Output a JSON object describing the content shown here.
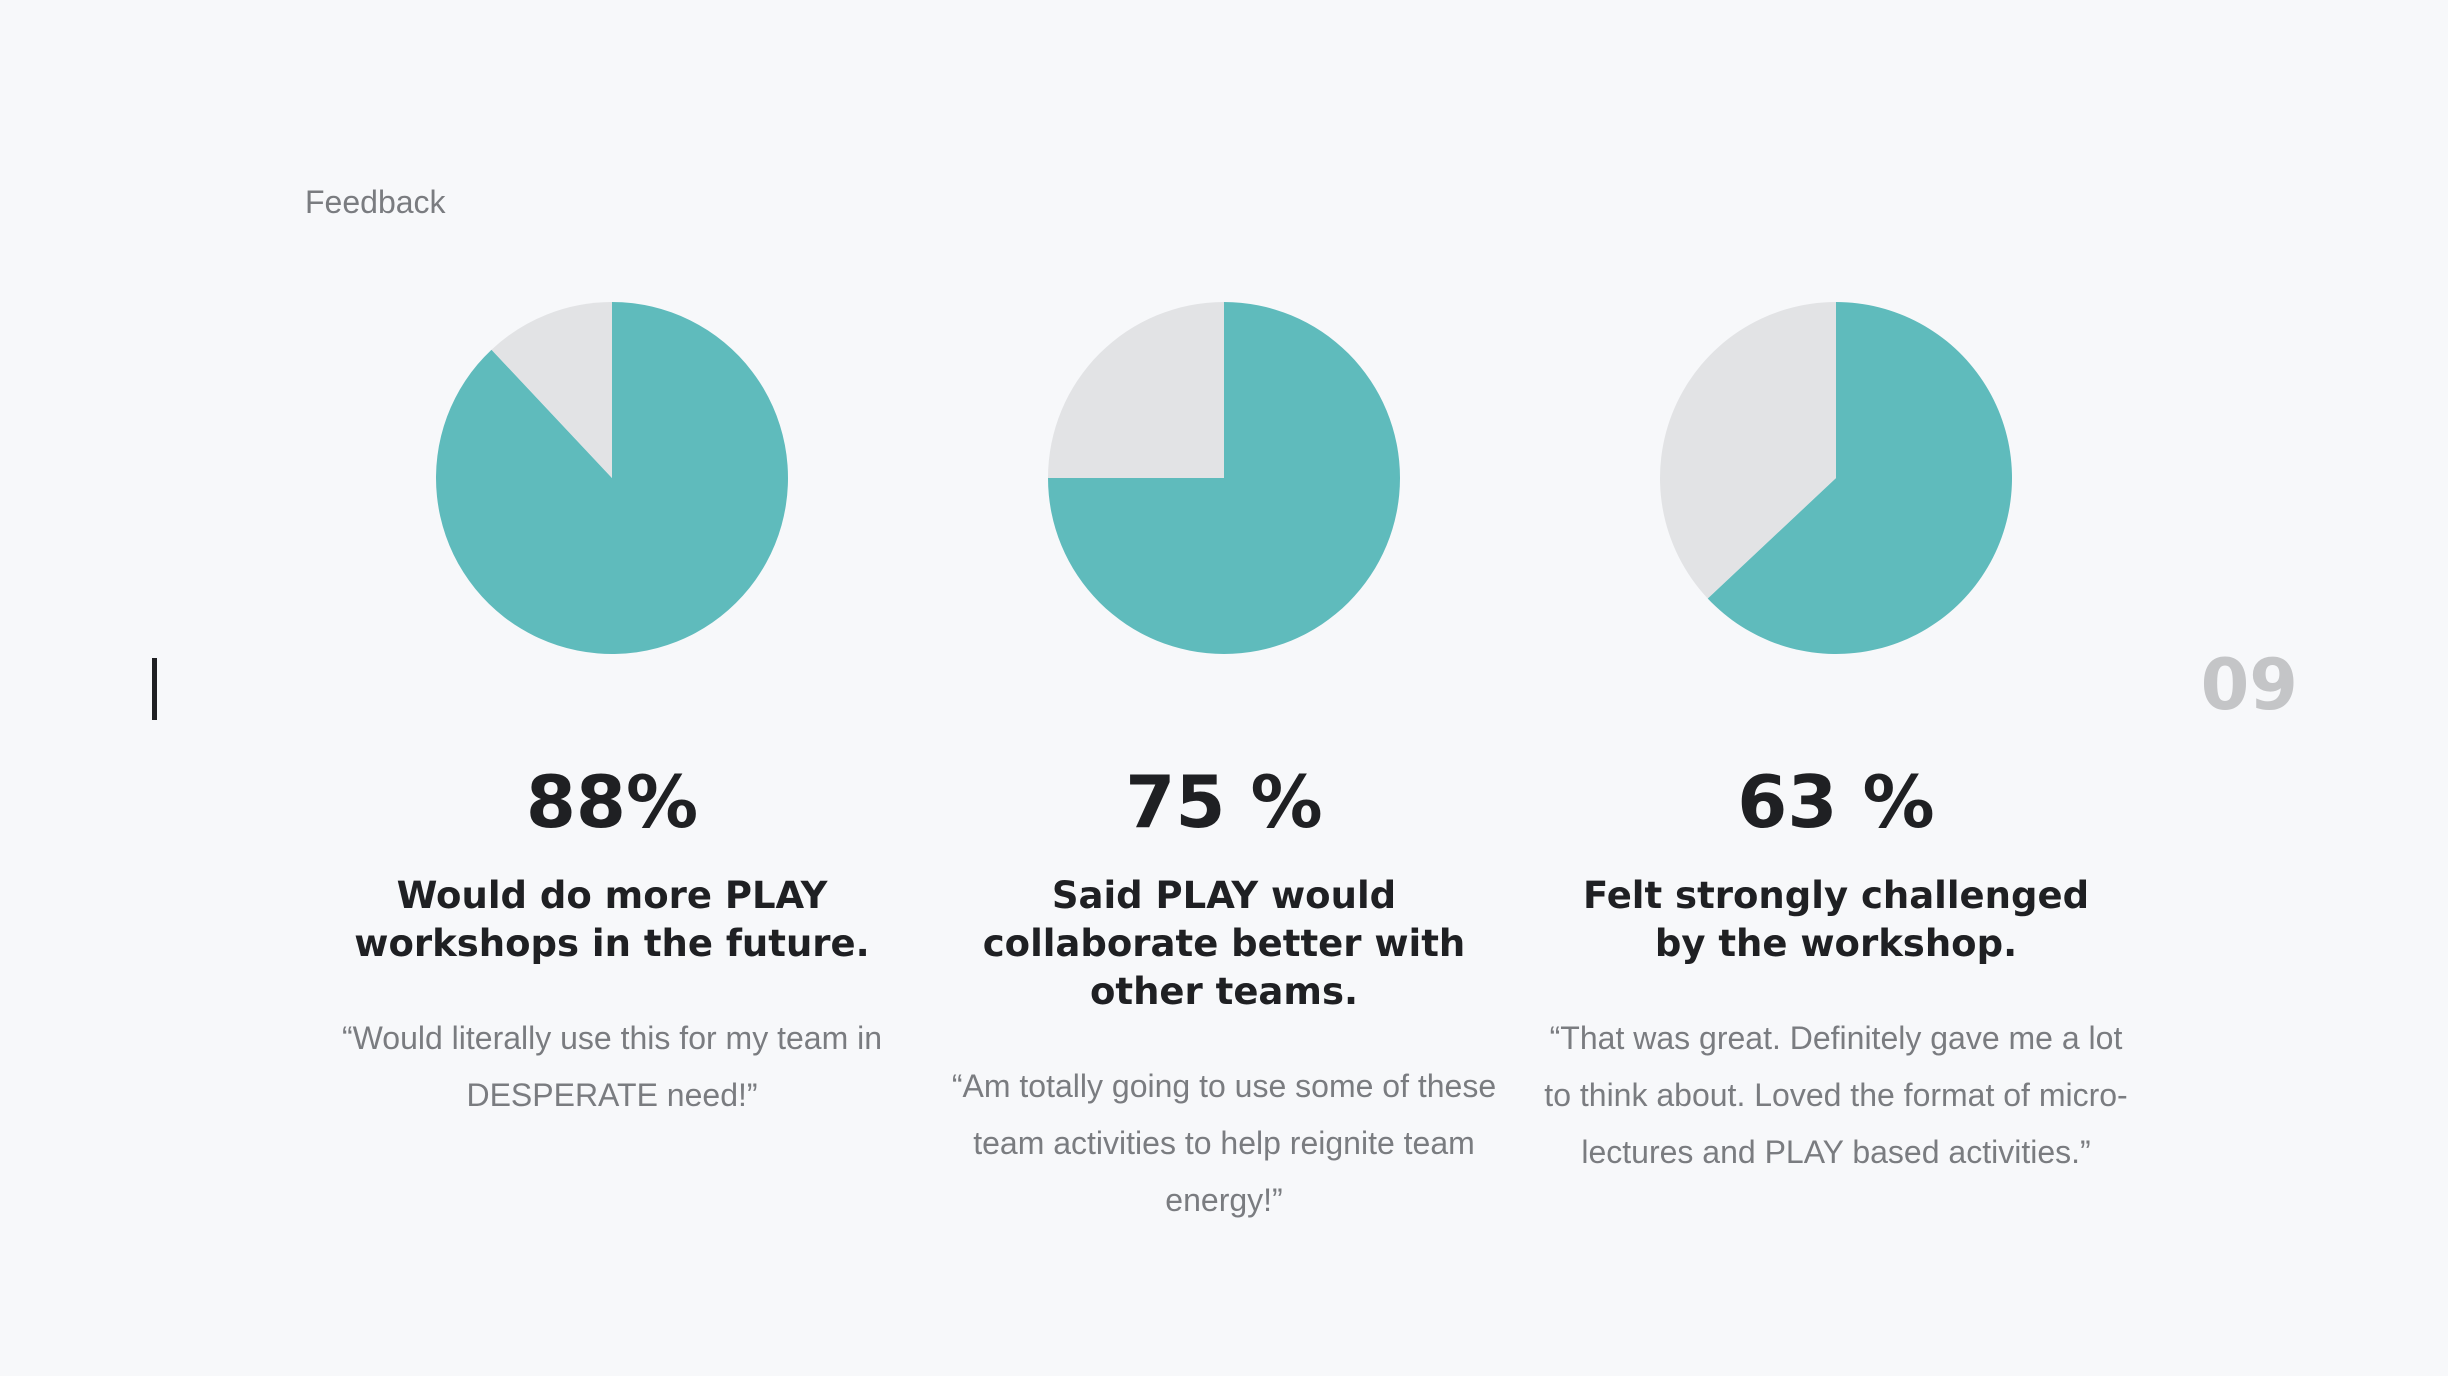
{
  "section_label": "Feedback",
  "page_number": "09",
  "colors": {
    "accent": "#5fbbbc",
    "remainder": "#e2e3e5",
    "text": "#1f2023",
    "muted": "#7a7c80"
  },
  "chart_data": [
    {
      "type": "pie",
      "slices": [
        {
          "label": "",
          "value": 88
        },
        {
          "label": "",
          "value": 12
        }
      ],
      "value_label": "88%",
      "statement": "Would do more PLAY workshops in the future.",
      "quote": "“Would literally use this for my team in DESPERATE need!”"
    },
    {
      "type": "pie",
      "slices": [
        {
          "label": "",
          "value": 75
        },
        {
          "label": "",
          "value": 25
        }
      ],
      "value_label": "75 %",
      "statement": "Said PLAY would collaborate better with other teams.",
      "quote": "“Am totally going to use some of these team activities to help reignite team energy!”"
    },
    {
      "type": "pie",
      "slices": [
        {
          "label": "",
          "value": 63
        },
        {
          "label": "",
          "value": 37
        }
      ],
      "value_label": "63 %",
      "statement": "Felt strongly challenged by the workshop.",
      "quote": "“That was great. Definitely gave me a lot to think about. Loved the format of micro-lectures and PLAY based activities.”"
    }
  ]
}
